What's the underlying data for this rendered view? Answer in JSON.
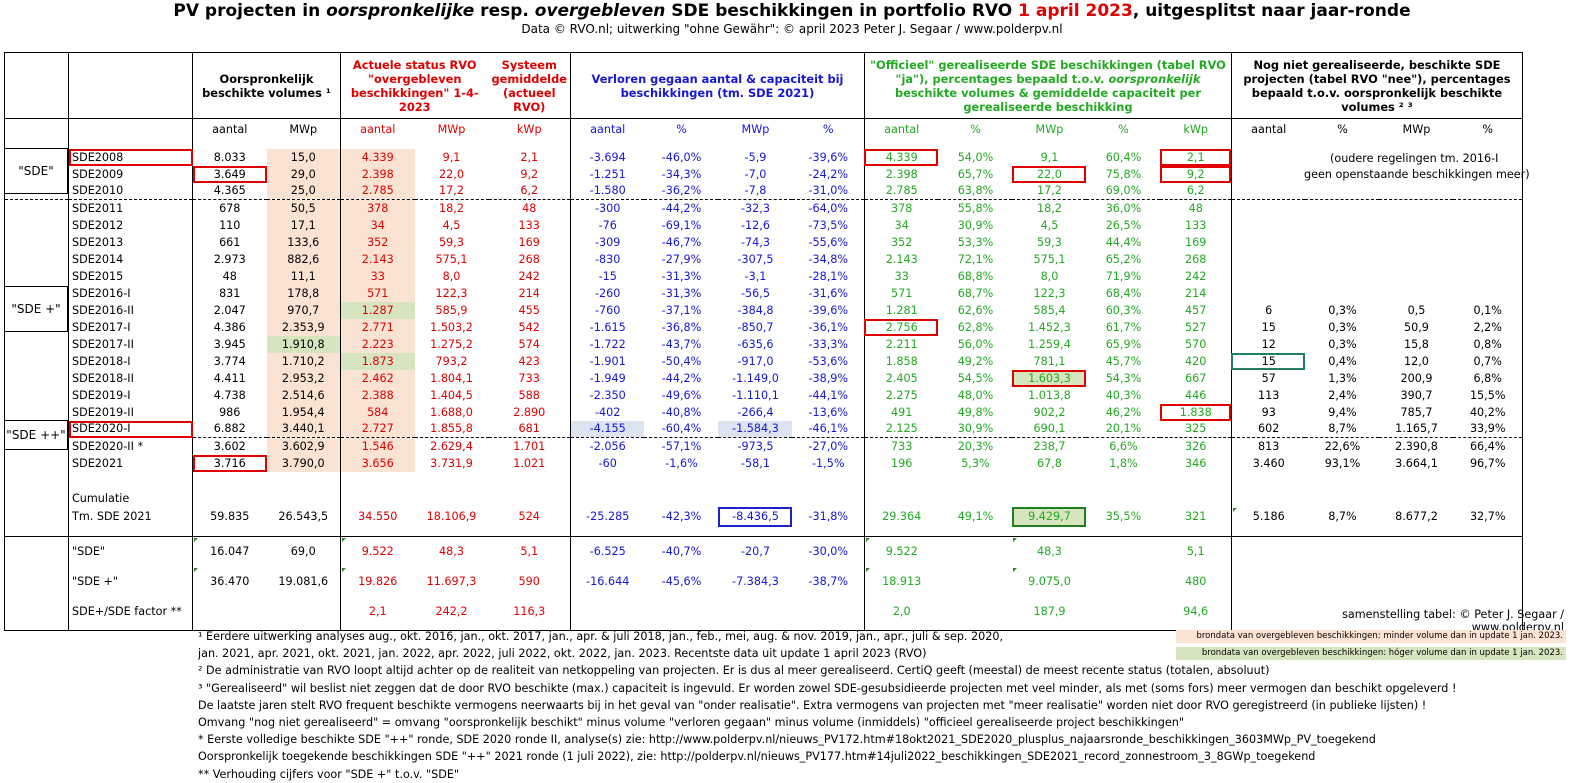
{
  "title": {
    "t1": "PV projecten in ",
    "t2": "oorspronkelijke",
    "t3": " resp. ",
    "t4": "overgebleven",
    "t5": " SDE beschikkingen in portfolio RVO ",
    "t6": "1 april 2023",
    "t7": ", uitgesplitst naar jaar-ronde"
  },
  "subtitle": "Data © RVO.nl; uitwerking \"ohne Gewähr\": © april 2023 Peter J. Segaar / www.polderpv.nl",
  "headers": {
    "orig": "Oorspronkelijk beschikte volumes ¹",
    "actueel": "Actuele status RVO \"overgebleven beschikkingen\" 1-4-2023",
    "systeem": "Systeem gemiddelde (actueel RVO)",
    "verloren": "Verloren gegaan aantal & capaciteit bij beschikkingen (tm. SDE 2021)",
    "officieel": "\"Officieel\" gerealiseerde SDE beschikkingen (tabel RVO \"ja\"), percentages bepaald t.o.v. oorspronkelijk beschikte volumes & gemiddelde capaciteit per gerealiseerde beschikking",
    "nognietA": "Nog niet gerealiseerde, beschikte SDE projecten (tabel RVO \"nee\"), percentages bepaald t.o.v. oorspronkelijk beschikte volumes ² ³"
  },
  "subheaders": [
    "aantal",
    "MWp",
    "aantal",
    "MWp",
    "kWp",
    "aantal",
    "%",
    "MWp",
    "%",
    "aantal",
    "%",
    "MWp",
    "%",
    "kWp",
    "aantal",
    "%",
    "MWp",
    "%"
  ],
  "groups": {
    "sde": "\"SDE\"",
    "sdeplus": "\"SDE +\"",
    "sdeplusplus": "\"SDE ++\""
  },
  "rows": [
    [
      "SDE2008",
      "8.033",
      "15,0",
      "4.339",
      "9,1",
      "2,1",
      "-3.694",
      "-46,0%",
      "-5,9",
      "-39,6%",
      "4.339",
      "54,0%",
      "9,1",
      "60,4%",
      "2,1",
      "",
      "",
      "",
      ""
    ],
    [
      "SDE2009",
      "3.649",
      "29,0",
      "2.398",
      "22,0",
      "9,2",
      "-1.251",
      "-34,3%",
      "-7,0",
      "-24,2%",
      "2.398",
      "65,7%",
      "22,0",
      "75,8%",
      "9,2",
      "",
      "",
      "",
      ""
    ],
    [
      "SDE2010",
      "4.365",
      "25,0",
      "2.785",
      "17,2",
      "6,2",
      "-1.580",
      "-36,2%",
      "-7,8",
      "-31,0%",
      "2.785",
      "63,8%",
      "17,2",
      "69,0%",
      "6,2",
      "",
      "",
      "",
      ""
    ],
    [
      "SDE2011",
      "678",
      "50,5",
      "378",
      "18,2",
      "48",
      "-300",
      "-44,2%",
      "-32,3",
      "-64,0%",
      "378",
      "55,8%",
      "18,2",
      "36,0%",
      "48",
      "",
      "",
      "",
      ""
    ],
    [
      "SDE2012",
      "110",
      "17,1",
      "34",
      "4,5",
      "133",
      "-76",
      "-69,1%",
      "-12,6",
      "-73,5%",
      "34",
      "30,9%",
      "4,5",
      "26,5%",
      "133",
      "",
      "",
      "",
      ""
    ],
    [
      "SDE2013",
      "661",
      "133,6",
      "352",
      "59,3",
      "169",
      "-309",
      "-46,7%",
      "-74,3",
      "-55,6%",
      "352",
      "53,3%",
      "59,3",
      "44,4%",
      "169",
      "",
      "",
      "",
      ""
    ],
    [
      "SDE2014",
      "2.973",
      "882,6",
      "2.143",
      "575,1",
      "268",
      "-830",
      "-27,9%",
      "-307,5",
      "-34,8%",
      "2.143",
      "72,1%",
      "575,1",
      "65,2%",
      "268",
      "",
      "",
      "",
      ""
    ],
    [
      "SDE2015",
      "48",
      "11,1",
      "33",
      "8,0",
      "242",
      "-15",
      "-31,3%",
      "-3,1",
      "-28,1%",
      "33",
      "68,8%",
      "8,0",
      "71,9%",
      "242",
      "",
      "",
      "",
      ""
    ],
    [
      "SDE2016-I",
      "831",
      "178,8",
      "571",
      "122,3",
      "214",
      "-260",
      "-31,3%",
      "-56,5",
      "-31,6%",
      "571",
      "68,7%",
      "122,3",
      "68,4%",
      "214",
      "",
      "",
      "",
      ""
    ],
    [
      "SDE2016-II",
      "2.047",
      "970,7",
      "1.287",
      "585,9",
      "455",
      "-760",
      "-37,1%",
      "-384,8",
      "-39,6%",
      "1.281",
      "62,6%",
      "585,4",
      "60,3%",
      "457",
      "6",
      "0,3%",
      "0,5",
      "0,1%"
    ],
    [
      "SDE2017-I",
      "4.386",
      "2.353,9",
      "2.771",
      "1.503,2",
      "542",
      "-1.615",
      "-36,8%",
      "-850,7",
      "-36,1%",
      "2.756",
      "62,8%",
      "1.452,3",
      "61,7%",
      "527",
      "15",
      "0,3%",
      "50,9",
      "2,2%"
    ],
    [
      "SDE2017-II",
      "3.945",
      "1.910,8",
      "2.223",
      "1.275,2",
      "574",
      "-1.722",
      "-43,7%",
      "-635,6",
      "-33,3%",
      "2.211",
      "56,0%",
      "1.259,4",
      "65,9%",
      "570",
      "12",
      "0,3%",
      "15,8",
      "0,8%"
    ],
    [
      "SDE2018-I",
      "3.774",
      "1.710,2",
      "1.873",
      "793,2",
      "423",
      "-1.901",
      "-50,4%",
      "-917,0",
      "-53,6%",
      "1.858",
      "49,2%",
      "781,1",
      "45,7%",
      "420",
      "15",
      "0,4%",
      "12,0",
      "0,7%"
    ],
    [
      "SDE2018-II",
      "4.411",
      "2.953,2",
      "2.462",
      "1.804,1",
      "733",
      "-1.949",
      "-44,2%",
      "-1.149,0",
      "-38,9%",
      "2.405",
      "54,5%",
      "1.603,3",
      "54,3%",
      "667",
      "57",
      "1,3%",
      "200,9",
      "6,8%"
    ],
    [
      "SDE2019-I",
      "4.738",
      "2.514,6",
      "2.388",
      "1.404,5",
      "588",
      "-2.350",
      "-49,6%",
      "-1.110,1",
      "-44,1%",
      "2.275",
      "48,0%",
      "1.013,8",
      "40,3%",
      "446",
      "113",
      "2,4%",
      "390,7",
      "15,5%"
    ],
    [
      "SDE2019-II",
      "986",
      "1.954,4",
      "584",
      "1.688,0",
      "2.890",
      "-402",
      "-40,8%",
      "-266,4",
      "-13,6%",
      "491",
      "49,8%",
      "902,2",
      "46,2%",
      "1.838",
      "93",
      "9,4%",
      "785,7",
      "40,2%"
    ],
    [
      "SDE2020-I",
      "6.882",
      "3.440,1",
      "2.727",
      "1.855,8",
      "681",
      "-4.155",
      "-60,4%",
      "-1.584,3",
      "-46,1%",
      "2.125",
      "30,9%",
      "690,1",
      "20,1%",
      "325",
      "602",
      "8,7%",
      "1.165,7",
      "33,9%"
    ],
    [
      "SDE2020-II *",
      "3.602",
      "3.602,9",
      "1.546",
      "2.629,4",
      "1.701",
      "-2.056",
      "-57,1%",
      "-973,5",
      "-27,0%",
      "733",
      "20,3%",
      "238,7",
      "6,6%",
      "326",
      "813",
      "22,6%",
      "2.390,8",
      "66,4%"
    ],
    [
      "SDE2021",
      "3.716",
      "3.790,0",
      "3.656",
      "3.731,9",
      "1.021",
      "-60",
      "-1,6%",
      "-58,1",
      "-1,5%",
      "196",
      "5,3%",
      "67,8",
      "1,8%",
      "346",
      "3.460",
      "93,1%",
      "3.664,1",
      "96,7%"
    ]
  ],
  "oude_note": {
    "line1": "(oudere regelingen tm. 2016-I",
    "line2": "geen openstaande beschikkingen meer)"
  },
  "cumulatie": {
    "label1": "Cumulatie",
    "label2": "Tm. SDE 2021",
    "values": [
      "59.835",
      "26.543,5",
      "34.550",
      "18.106,9",
      "524",
      "-25.285",
      "-42,3%",
      "-8.436,5",
      "-31,8%",
      "29.364",
      "49,1%",
      "9.429,7",
      "35,5%",
      "321",
      "5.186",
      "8,7%",
      "8.677,2",
      "32,7%"
    ]
  },
  "summary": [
    {
      "label": "\"SDE\"",
      "values": [
        "16.047",
        "69,0",
        "9.522",
        "48,3",
        "5,1",
        "-6.525",
        "-40,7%",
        "-20,7",
        "-30,0%",
        "9.522",
        "",
        "48,3",
        "",
        "5,1",
        "",
        "",
        "",
        ""
      ]
    },
    {
      "label": "\"SDE +\"",
      "values": [
        "36.470",
        "19.081,6",
        "19.826",
        "11.697,3",
        "590",
        "-16.644",
        "-45,6%",
        "-7.384,3",
        "-38,7%",
        "18.913",
        "",
        "9.075,0",
        "",
        "480",
        "",
        "",
        "",
        ""
      ]
    },
    {
      "label": "SDE+/SDE factor **",
      "values": [
        "",
        "",
        "2,1",
        "242,2",
        "116,3",
        "",
        "",
        "",
        "",
        "2,0",
        "",
        "187,9",
        "",
        "94,6",
        "",
        "",
        "",
        ""
      ]
    }
  ],
  "credit": "samenstelling tabel: © Peter J. Segaar / www.polderpv.nl",
  "legend": {
    "pink": "brondata van overgebleven beschikkingen: minder volume dan in update 1 jan. 2023.",
    "green": "brondata van overgebleven beschikkingen: hóger volume dan in update 1 jan. 2023."
  },
  "footnotes": [
    "¹ Eerdere uitwerking analyses aug., okt. 2016, jan., okt.  2017, jan., apr. & juli 2018, jan., feb., mei, aug. & nov. 2019, jan., apr., juli & sep. 2020,",
    "   jan. 2021, apr. 2021, okt. 2021, jan. 2022, apr. 2022, juli 2022, okt. 2022, jan. 2023. Recentste data uit update 1 april 2023 (RVO)",
    "² De administratie van RVO loopt altijd achter op de realiteit van netkoppeling van projecten. Er is dus al meer gerealiseerd. CertiQ geeft (meestal) de meest recente status (totalen, absoluut)",
    "³ \"Gerealiseerd\" wil beslist niet zeggen dat de door RVO beschikte (max.) capaciteit is ingevuld. Er worden zowel SDE-gesubsidieerde projecten met veel minder,  als met (soms fors) meer  vermogen dan beschikt opgeleverd !",
    "De laatste jaren stelt RVO frequent beschikte vermogens neerwaarts bij in het geval van \"onder realisatie\". Extra vermogens van projecten met \"meer realisatie\" worden niet door RVO geregistreerd (in publieke lijsten) !",
    "Omvang \"nog niet gerealiseerd\" = omvang \"oorspronkelijk beschikt\" minus volume \"verloren gegaan\" minus volume (inmiddels) \"officieel gerealiseerde project beschikkingen\"",
    "* Eerste volledige beschikte SDE \"++\" ronde, SDE 2020 ronde II, analyse(s) zie: http://www.polderpv.nl/nieuws_PV172.htm#18okt2021_SDE2020_plusplus_najaarsronde_beschikkingen_3603MWp_PV_toegekend",
    "Oorspronkelijk toegekende beschikkingen SDE \"++\" 2021 ronde (1 juli 2022), zie: http://polderpv.nl/nieuws_PV177.htm#14juli2022_beschikkingen_SDE2021_record_zonnestroom_3_8GWp_toegekend",
    "** Verhouding cijfers voor \"SDE +\" t.o.v. \"SDE\""
  ]
}
